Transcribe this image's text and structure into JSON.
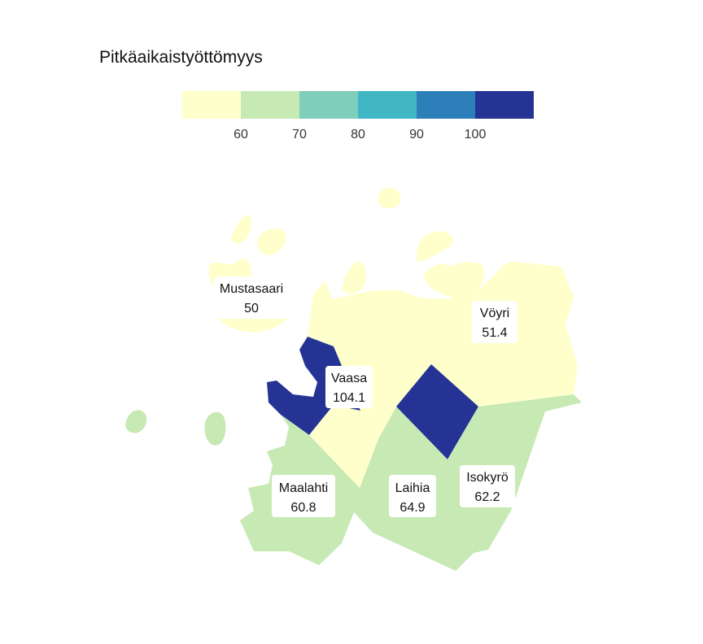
{
  "map": {
    "title": "Pitkäaikaistyöttömyys",
    "legend": {
      "colors": [
        "#ffffcc",
        "#c7e9b4",
        "#7fcdbb",
        "#41b6c4",
        "#2c7fb8",
        "#253494"
      ],
      "ticks": [
        "60",
        "70",
        "80",
        "90",
        "100"
      ]
    },
    "regions": [
      {
        "name": "Mustasaari",
        "value": "50",
        "color": "#ffffcc"
      },
      {
        "name": "Vöyri",
        "value": "51.4",
        "color": "#ffffcc"
      },
      {
        "name": "Vaasa",
        "value": "104.1",
        "color": "#253494"
      },
      {
        "name": "Maalahti",
        "value": "60.8",
        "color": "#c7e9b4"
      },
      {
        "name": "Laihia",
        "value": "64.9",
        "color": "#c7e9b4"
      },
      {
        "name": "Isokyrö",
        "value": "62.2",
        "color": "#c7e9b4"
      }
    ]
  }
}
